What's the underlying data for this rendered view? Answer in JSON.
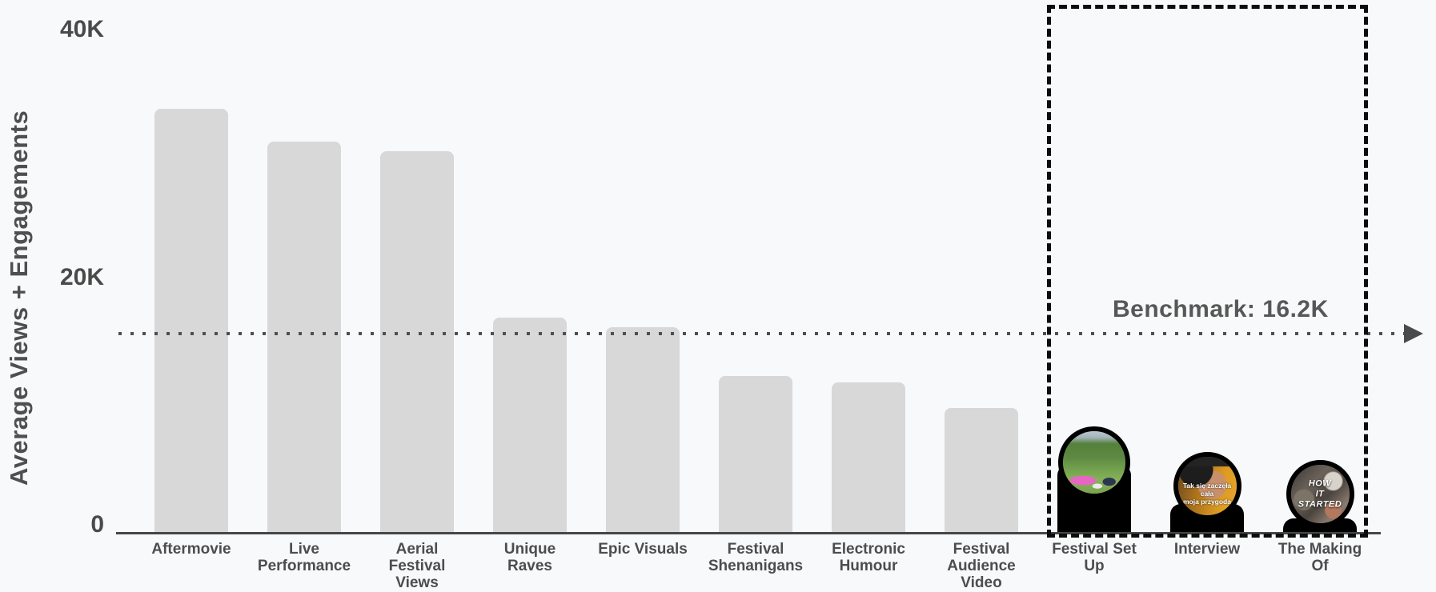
{
  "page": {
    "background_color": "#f8f9fa"
  },
  "chart_data": {
    "type": "bar",
    "title": "",
    "xlabel": "",
    "ylabel": "Average Views + Engagements",
    "yticks": [
      "0",
      "20K",
      "40K"
    ],
    "ylim": [
      0,
      42000
    ],
    "grid": "off",
    "legend": "none",
    "bar_color": "#d8d8d8",
    "highlight_bar_color": "#000000",
    "categories": [
      "Aftermovie",
      "Live\nPerformance",
      "Aerial\nFestival\nViews",
      "Unique\nRaves",
      "Epic Visuals",
      "Festival\nShenanigans",
      "Electronic\nHumour",
      "Festival\nAudience\nVideo",
      "Festival Set\nUp",
      "Interview",
      "The Making\nOf"
    ],
    "values_k": [
      33.2,
      30.6,
      29.9,
      16.9,
      16.1,
      12.3,
      11.8,
      9.8,
      5.4,
      2.3,
      1.2
    ],
    "benchmark": {
      "label": "Benchmark: 16.2K",
      "value_k": 16.2
    },
    "highlighted_categories": [
      "Festival Set\nUp",
      "Interview",
      "The Making\nOf"
    ]
  },
  "thumbnails": {
    "interview_caption": "Tak się zaczęła cała\nmoja przygoda",
    "making_of_caption": "HOW\nIT\nSTARTED"
  }
}
